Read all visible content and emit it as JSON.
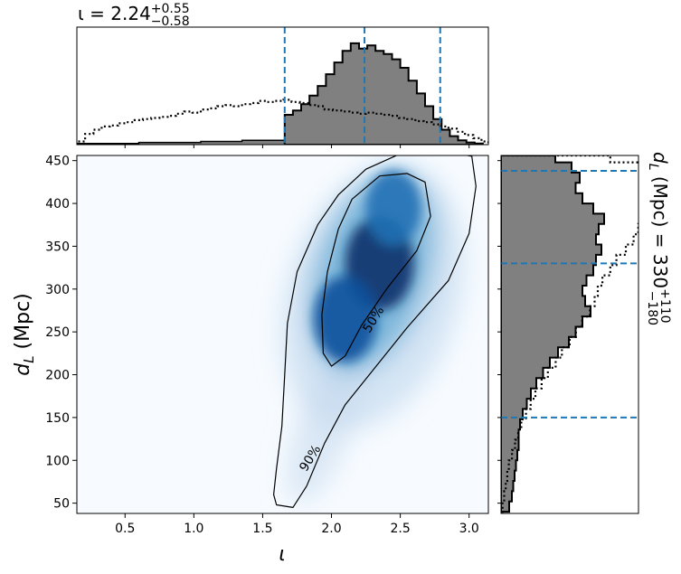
{
  "chart_data": {
    "type": "corner",
    "x_param": {
      "symbol": "ι",
      "median": "2.24",
      "plus": "+0.55",
      "minus": "−0.58",
      "range": [
        0.15,
        3.14
      ],
      "ticks": [
        "0.5",
        "1.0",
        "1.5",
        "2.0",
        "2.5",
        "3.0"
      ],
      "tick_values": [
        0.5,
        1.0,
        1.5,
        2.0,
        2.5,
        3.0
      ],
      "credible_lines": [
        1.66,
        2.24,
        2.79
      ]
    },
    "y_param": {
      "symbol": "d",
      "subscript": "L",
      "unit": "(Mpc)",
      "median": "330",
      "plus": "+110",
      "minus": "−180",
      "range": [
        38,
        456
      ],
      "ticks": [
        "50",
        "100",
        "150",
        "200",
        "250",
        "300",
        "350",
        "400",
        "450"
      ],
      "tick_values": [
        50,
        100,
        150,
        200,
        250,
        300,
        350,
        400,
        450
      ],
      "credible_lines": [
        150,
        330,
        438
      ]
    },
    "contours": [
      {
        "label": "90%",
        "level": 0.9
      },
      {
        "label": "50%",
        "level": 0.5
      }
    ],
    "heatmap": {
      "colormap": "Blues",
      "peaks": [
        {
          "x": 2.35,
          "y": 330,
          "weight": 1.0
        },
        {
          "x": 2.1,
          "y": 265,
          "weight": 0.9
        },
        {
          "x": 2.45,
          "y": 395,
          "weight": 0.75
        }
      ]
    },
    "x_marginal": {
      "filled_color": "#808080",
      "edges": [
        1.66,
        1.72,
        1.78,
        1.84,
        1.9,
        1.96,
        2.02,
        2.08,
        2.14,
        2.2,
        2.26,
        2.32,
        2.38,
        2.44,
        2.5,
        2.56,
        2.62,
        2.68,
        2.74,
        2.8,
        2.86,
        2.92,
        2.98,
        3.04,
        3.1
      ],
      "counts": [
        0.28,
        0.32,
        0.38,
        0.46,
        0.55,
        0.66,
        0.77,
        0.88,
        0.95,
        0.9,
        0.93,
        0.88,
        0.85,
        0.8,
        0.72,
        0.6,
        0.48,
        0.36,
        0.24,
        0.14,
        0.08,
        0.04,
        0.02,
        0.01
      ],
      "prior_edges": [
        0.15,
        0.21,
        0.27,
        0.33,
        0.39,
        0.45,
        0.51,
        0.57,
        0.63,
        0.69,
        0.75,
        0.81,
        0.87,
        0.93,
        0.99,
        1.05,
        1.11,
        1.17,
        1.23,
        1.29,
        1.35,
        1.41,
        1.47,
        1.53,
        1.59,
        1.65,
        1.71,
        1.77,
        1.83,
        1.89,
        1.95,
        2.01,
        2.07,
        2.13,
        2.19,
        2.25,
        2.31,
        2.37,
        2.43,
        2.49,
        2.55,
        2.61,
        2.67,
        2.73,
        2.79,
        2.85,
        2.91,
        2.97,
        3.03,
        3.09,
        3.14
      ],
      "prior_counts": [
        0.03,
        0.1,
        0.14,
        0.17,
        0.18,
        0.2,
        0.21,
        0.23,
        0.24,
        0.25,
        0.26,
        0.27,
        0.29,
        0.31,
        0.3,
        0.33,
        0.34,
        0.36,
        0.37,
        0.36,
        0.38,
        0.39,
        0.41,
        0.4,
        0.41,
        0.42,
        0.4,
        0.39,
        0.37,
        0.36,
        0.33,
        0.32,
        0.31,
        0.3,
        0.29,
        0.3,
        0.29,
        0.28,
        0.27,
        0.25,
        0.24,
        0.22,
        0.21,
        0.19,
        0.17,
        0.15,
        0.12,
        0.09,
        0.06,
        0.03
      ],
      "secondary_edges": [
        0.15,
        0.3,
        0.45,
        0.6,
        0.75,
        0.9,
        1.05,
        1.2,
        1.35,
        1.5,
        1.66
      ],
      "secondary_counts": [
        0.01,
        0.01,
        0.01,
        0.02,
        0.02,
        0.02,
        0.03,
        0.03,
        0.04,
        0.04
      ]
    },
    "y_marginal": {
      "filled_color": "#808080",
      "edges": [
        40,
        52,
        64,
        76,
        88,
        100,
        112,
        124,
        136,
        148,
        160,
        172,
        184,
        196,
        208,
        220,
        232,
        244,
        256,
        268,
        280,
        292,
        304,
        316,
        328,
        340,
        352,
        364,
        376,
        388,
        400,
        412,
        424,
        436,
        448,
        456
      ],
      "counts": [
        0.06,
        0.08,
        0.09,
        0.1,
        0.11,
        0.12,
        0.13,
        0.13,
        0.14,
        0.16,
        0.19,
        0.22,
        0.26,
        0.31,
        0.36,
        0.42,
        0.5,
        0.55,
        0.6,
        0.66,
        0.62,
        0.6,
        0.63,
        0.68,
        0.7,
        0.74,
        0.7,
        0.72,
        0.76,
        0.68,
        0.6,
        0.55,
        0.58,
        0.52,
        0.4
      ],
      "prior_edges": [
        40,
        52,
        64,
        76,
        88,
        100,
        112,
        124,
        136,
        148,
        160,
        172,
        184,
        196,
        208,
        220,
        232,
        244,
        256,
        268,
        280,
        292,
        304,
        316,
        328,
        340,
        352,
        364,
        376,
        388,
        400,
        412,
        424,
        436,
        448,
        456
      ],
      "prior_counts": [
        0.01,
        0.02,
        0.03,
        0.04,
        0.05,
        0.07,
        0.09,
        0.11,
        0.13,
        0.16,
        0.19,
        0.22,
        0.26,
        0.3,
        0.35,
        0.39,
        0.44,
        0.48,
        0.52,
        0.57,
        0.6,
        0.62,
        0.65,
        0.7,
        0.74,
        0.8,
        0.85,
        0.88,
        0.92,
        0.96,
        1.0,
        1.0,
        0.98,
        0.9,
        0.7
      ]
    },
    "credible_line_color": "#1f77b4"
  }
}
